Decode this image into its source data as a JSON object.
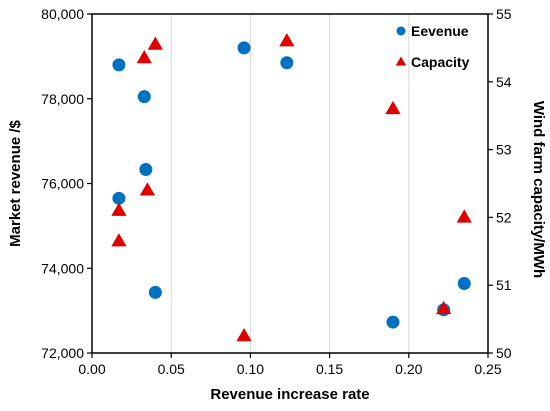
{
  "chart_data": {
    "type": "scatter",
    "xlabel": "Revenue increase rate",
    "ylabel_left": "Market revenue /$",
    "ylabel_right": "Wind farm capacity/MWh",
    "xlim": [
      0,
      0.25
    ],
    "ylim_left": [
      72000,
      80000
    ],
    "ylim_right": [
      50,
      55
    ],
    "x_ticks": [
      "0.00",
      "0.05",
      "0.10",
      "0.15",
      "0.20",
      "0.25"
    ],
    "y_left_ticks": [
      "72,000",
      "74,000",
      "76,000",
      "78,000",
      "80,000"
    ],
    "y_right_ticks": [
      "50",
      "51",
      "52",
      "53",
      "54",
      "55"
    ],
    "grid": "vertical",
    "legend_position": "top-right",
    "series": [
      {
        "name": "Eevenue",
        "axis": "left",
        "marker": "circle",
        "color": "#0070C0",
        "points": [
          {
            "x": 0.017,
            "y": 78800
          },
          {
            "x": 0.033,
            "y": 78050
          },
          {
            "x": 0.034,
            "y": 76330
          },
          {
            "x": 0.017,
            "y": 75650
          },
          {
            "x": 0.04,
            "y": 73430
          },
          {
            "x": 0.096,
            "y": 79200
          },
          {
            "x": 0.123,
            "y": 78850
          },
          {
            "x": 0.19,
            "y": 72730
          },
          {
            "x": 0.222,
            "y": 73020
          },
          {
            "x": 0.235,
            "y": 73640
          }
        ]
      },
      {
        "name": "Capacity",
        "axis": "right",
        "marker": "triangle",
        "color": "#E00000",
        "points": [
          {
            "x": 0.033,
            "y": 54.35
          },
          {
            "x": 0.04,
            "y": 54.55
          },
          {
            "x": 0.035,
            "y": 52.4
          },
          {
            "x": 0.017,
            "y": 52.1
          },
          {
            "x": 0.017,
            "y": 51.65
          },
          {
            "x": 0.096,
            "y": 50.25
          },
          {
            "x": 0.123,
            "y": 54.6
          },
          {
            "x": 0.19,
            "y": 53.6
          },
          {
            "x": 0.222,
            "y": 50.65
          },
          {
            "x": 0.235,
            "y": 52.0
          }
        ]
      }
    ]
  }
}
